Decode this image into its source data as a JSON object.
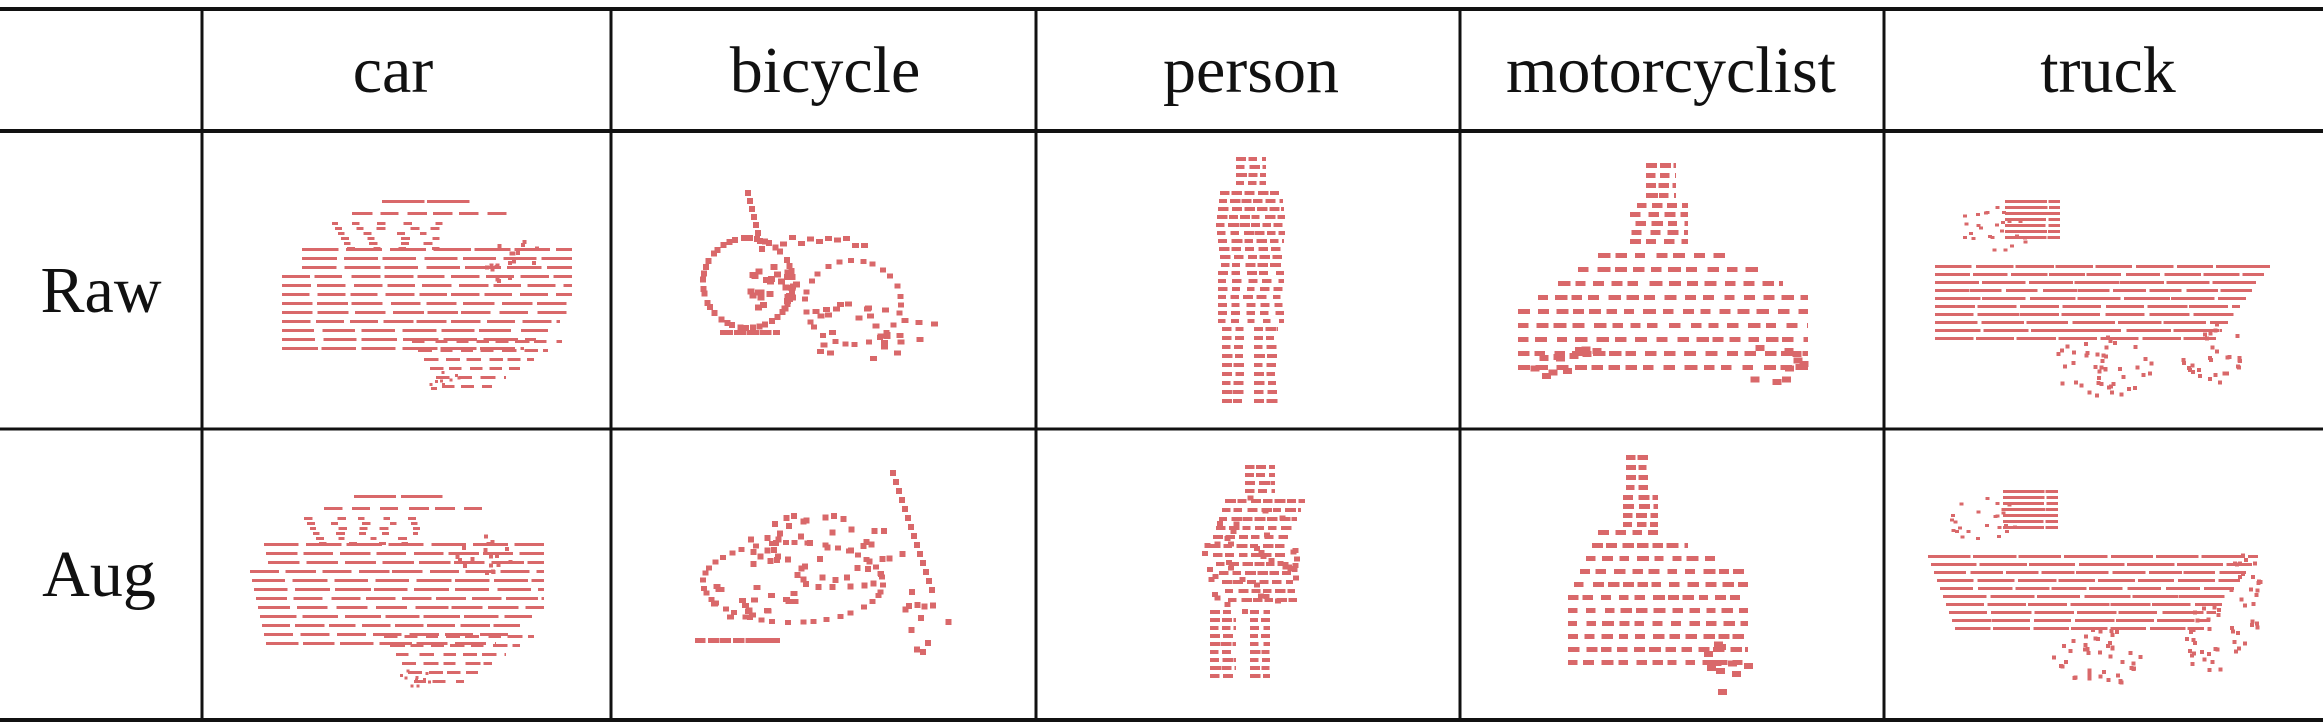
{
  "table": {
    "corner": "",
    "columns": [
      "car",
      "bicycle",
      "person",
      "motorcyclist",
      "truck"
    ],
    "rows": [
      "Raw",
      "Aug"
    ]
  },
  "style": {
    "point_color": "#d9686a",
    "line_color": "#111111",
    "background": "#ffffff"
  },
  "cells": [
    {
      "row": "Raw",
      "column": "car",
      "content": "point-cloud"
    },
    {
      "row": "Raw",
      "column": "bicycle",
      "content": "point-cloud"
    },
    {
      "row": "Raw",
      "column": "person",
      "content": "point-cloud"
    },
    {
      "row": "Raw",
      "column": "motorcyclist",
      "content": "point-cloud"
    },
    {
      "row": "Raw",
      "column": "truck",
      "content": "point-cloud"
    },
    {
      "row": "Aug",
      "column": "car",
      "content": "point-cloud"
    },
    {
      "row": "Aug",
      "column": "bicycle",
      "content": "point-cloud"
    },
    {
      "row": "Aug",
      "column": "person",
      "content": "point-cloud"
    },
    {
      "row": "Aug",
      "column": "motorcyclist",
      "content": "point-cloud"
    },
    {
      "row": "Aug",
      "column": "truck",
      "content": "point-cloud"
    }
  ]
}
